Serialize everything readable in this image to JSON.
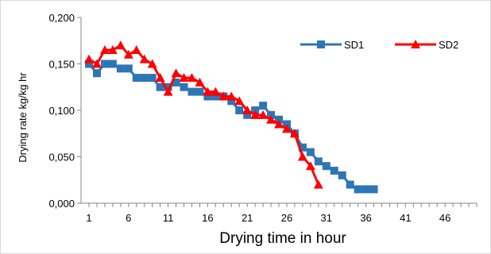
{
  "chart_data": {
    "type": "line",
    "title": "",
    "xlabel": "Drying time in hour",
    "ylabel": "Drying rate kg/kg hr",
    "xlim": [
      1,
      50
    ],
    "ylim": [
      0,
      0.2
    ],
    "x_ticks": [
      1,
      6,
      11,
      16,
      21,
      26,
      31,
      36,
      41,
      46
    ],
    "x_tick_labels": [
      "1",
      "6",
      "11",
      "16",
      "21",
      "26",
      "31",
      "36",
      "41",
      "46"
    ],
    "y_ticks": [
      0,
      0.05,
      0.1,
      0.15,
      0.2
    ],
    "y_tick_labels": [
      "0,000",
      "0,050",
      "0,100",
      "0,150",
      "0,200"
    ],
    "grid": false,
    "legend_position": "top-right",
    "series": [
      {
        "name": "SD1",
        "color": "#2e75b6",
        "marker": "square",
        "x": [
          1,
          2,
          3,
          4,
          5,
          6,
          7,
          8,
          9,
          10,
          11,
          12,
          13,
          14,
          15,
          16,
          17,
          18,
          19,
          20,
          21,
          22,
          23,
          24,
          25,
          26,
          27,
          28,
          29,
          30,
          31,
          32,
          33,
          34,
          35,
          36,
          37
        ],
        "y": [
          0.15,
          0.14,
          0.15,
          0.15,
          0.145,
          0.145,
          0.135,
          0.135,
          0.135,
          0.125,
          0.125,
          0.13,
          0.125,
          0.12,
          0.12,
          0.115,
          0.115,
          0.115,
          0.11,
          0.1,
          0.095,
          0.1,
          0.105,
          0.095,
          0.09,
          0.085,
          0.075,
          0.06,
          0.055,
          0.045,
          0.04,
          0.035,
          0.03,
          0.02,
          0.015,
          0.015,
          0.015
        ]
      },
      {
        "name": "SD2",
        "color": "#ff0000",
        "marker": "triangle",
        "x": [
          1,
          2,
          3,
          4,
          5,
          6,
          7,
          8,
          9,
          10,
          11,
          12,
          13,
          14,
          15,
          16,
          17,
          18,
          19,
          20,
          21,
          22,
          23,
          24,
          25,
          26,
          27,
          28,
          29,
          30
        ],
        "y": [
          0.155,
          0.15,
          0.165,
          0.165,
          0.17,
          0.16,
          0.165,
          0.155,
          0.15,
          0.135,
          0.12,
          0.14,
          0.135,
          0.135,
          0.13,
          0.12,
          0.12,
          0.115,
          0.115,
          0.11,
          0.1,
          0.095,
          0.095,
          0.09,
          0.085,
          0.08,
          0.075,
          0.05,
          0.04,
          0.02
        ]
      }
    ]
  }
}
